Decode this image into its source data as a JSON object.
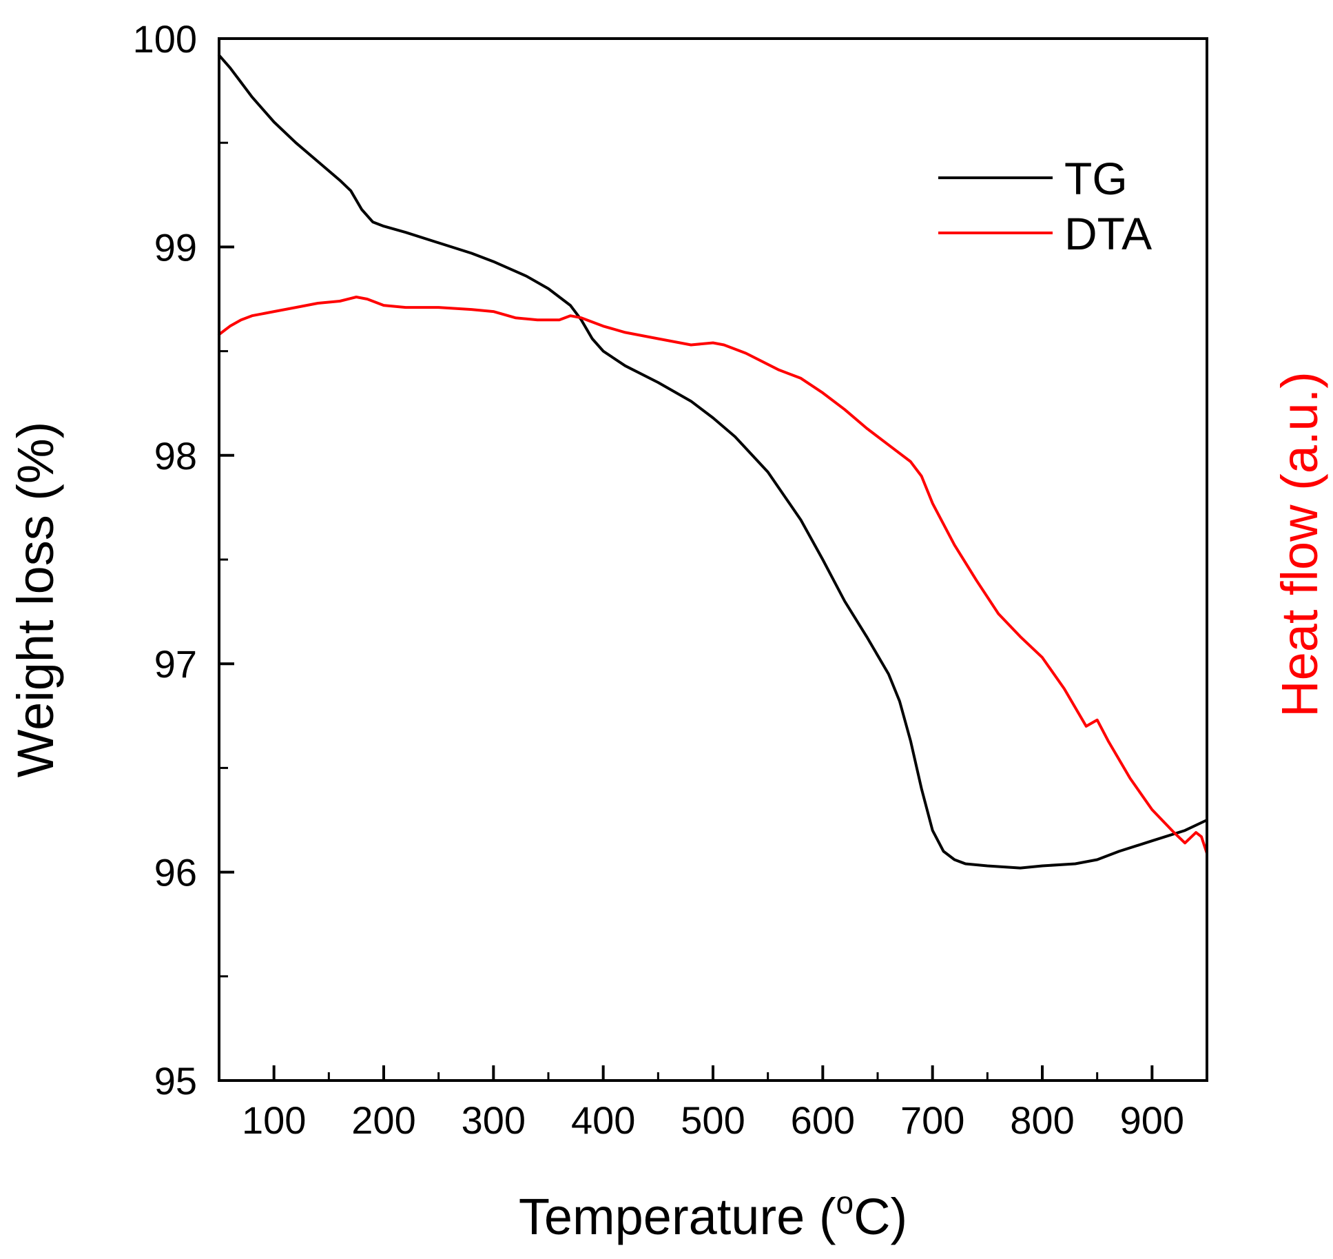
{
  "chart_data": {
    "type": "line",
    "xlabel_main": "Temperature (",
    "xlabel_sup": "o",
    "xlabel_end": "C)",
    "ylabel": "Weight loss (%)",
    "ylabel_right": "Heat flow (a.u.)",
    "xlim": [
      50,
      950
    ],
    "ylim": [
      95,
      100
    ],
    "x_ticks": [
      100,
      200,
      300,
      400,
      500,
      600,
      700,
      800,
      900
    ],
    "x_tick_labels": [
      "100",
      "200",
      "300",
      "400",
      "500",
      "600",
      "700",
      "800",
      "900"
    ],
    "y_ticks": [
      95,
      96,
      97,
      98,
      99,
      100
    ],
    "y_tick_labels": [
      "95",
      "96",
      "97",
      "98",
      "99",
      "100"
    ],
    "y_minor_ticks": [
      95.5,
      96.5,
      97.5,
      98.5,
      99.5
    ],
    "colors": {
      "TG": "#000000",
      "DTA": "#ff0000",
      "right_axis_label": "#ff0000"
    },
    "legend": {
      "position": "top-right",
      "entries": [
        "TG",
        "DTA"
      ]
    },
    "series": [
      {
        "name": "TG",
        "x": [
          50,
          60,
          70,
          80,
          90,
          100,
          120,
          140,
          160,
          170,
          180,
          190,
          200,
          220,
          250,
          280,
          300,
          330,
          350,
          370,
          380,
          390,
          400,
          420,
          450,
          480,
          500,
          520,
          550,
          580,
          600,
          620,
          640,
          660,
          670,
          680,
          690,
          700,
          710,
          720,
          730,
          750,
          780,
          800,
          830,
          850,
          870,
          900,
          930,
          950
        ],
        "y": [
          99.92,
          99.86,
          99.79,
          99.72,
          99.66,
          99.6,
          99.5,
          99.41,
          99.32,
          99.27,
          99.18,
          99.12,
          99.1,
          99.07,
          99.02,
          98.97,
          98.93,
          98.86,
          98.8,
          98.72,
          98.65,
          98.56,
          98.5,
          98.43,
          98.35,
          98.26,
          98.18,
          98.09,
          97.92,
          97.69,
          97.5,
          97.3,
          97.13,
          96.95,
          96.82,
          96.63,
          96.4,
          96.2,
          96.1,
          96.06,
          96.04,
          96.03,
          96.02,
          96.03,
          96.04,
          96.06,
          96.1,
          96.15,
          96.2,
          96.25
        ]
      },
      {
        "name": "DTA",
        "x": [
          50,
          60,
          70,
          80,
          100,
          120,
          140,
          160,
          175,
          185,
          200,
          220,
          250,
          280,
          300,
          320,
          340,
          360,
          370,
          380,
          400,
          420,
          450,
          480,
          500,
          510,
          530,
          560,
          580,
          600,
          620,
          640,
          660,
          680,
          690,
          700,
          720,
          740,
          760,
          780,
          800,
          820,
          840,
          850,
          860,
          880,
          900,
          920,
          930,
          940,
          945,
          950
        ],
        "y": [
          98.58,
          98.62,
          98.65,
          98.67,
          98.69,
          98.71,
          98.73,
          98.74,
          98.76,
          98.75,
          98.72,
          98.71,
          98.71,
          98.7,
          98.69,
          98.66,
          98.65,
          98.65,
          98.67,
          98.66,
          98.62,
          98.59,
          98.56,
          98.53,
          98.54,
          98.53,
          98.49,
          98.41,
          98.37,
          98.3,
          98.22,
          98.13,
          98.05,
          97.97,
          97.9,
          97.77,
          97.57,
          97.4,
          97.24,
          97.13,
          97.03,
          96.88,
          96.7,
          96.73,
          96.63,
          96.45,
          96.3,
          96.19,
          96.14,
          96.19,
          96.17,
          96.09
        ]
      }
    ]
  }
}
